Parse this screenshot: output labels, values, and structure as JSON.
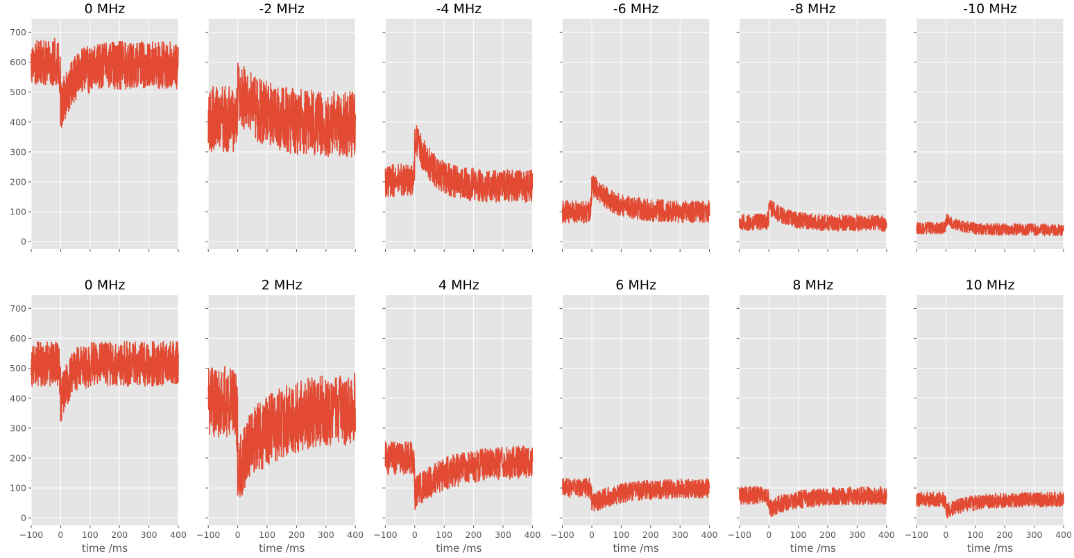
{
  "figure": {
    "background": "#ffffff",
    "plot_background": "#e5e5e5",
    "grid_color": "#ffffff",
    "series_color": "#e24a33",
    "tick_color": "#555555",
    "title_color": "#000000"
  },
  "chart_data": [
    {
      "type": "line",
      "title": "0 MHz",
      "xlabel": "",
      "ylabel": "",
      "xlim": [
        -100,
        400
      ],
      "ylim": [
        -25,
        745
      ],
      "x_ticks": [
        "−100",
        "0",
        "100",
        "200",
        "300",
        "400"
      ],
      "y_ticks": [
        "0",
        "100",
        "200",
        "300",
        "400",
        "500",
        "600",
        "700"
      ],
      "show_x_tick_labels": false,
      "show_y_tick_labels": true,
      "grid": true,
      "series": [
        {
          "pre": 600,
          "post": 590,
          "band": 160,
          "spike": -150,
          "tau": 40
        }
      ]
    },
    {
      "type": "line",
      "title": "-2 MHz",
      "xlabel": "",
      "ylabel": "",
      "xlim": [
        -100,
        400
      ],
      "ylim": [
        -25,
        745
      ],
      "x_ticks": [
        "−100",
        "0",
        "100",
        "200",
        "300",
        "400"
      ],
      "y_ticks": [
        "0",
        "100",
        "200",
        "300",
        "400",
        "500",
        "600",
        "700"
      ],
      "show_x_tick_labels": false,
      "show_y_tick_labels": false,
      "grid": true,
      "series": [
        {
          "pre": 410,
          "post": 390,
          "band": 220,
          "spike": 110,
          "tau": 90
        }
      ]
    },
    {
      "type": "line",
      "title": "-4 MHz",
      "xlabel": "",
      "ylabel": "",
      "xlim": [
        -100,
        400
      ],
      "ylim": [
        -25,
        745
      ],
      "x_ticks": [
        "−100",
        "0",
        "100",
        "200",
        "300",
        "400"
      ],
      "y_ticks": [
        "0",
        "100",
        "200",
        "300",
        "400",
        "500",
        "600",
        "700"
      ],
      "show_x_tick_labels": false,
      "show_y_tick_labels": false,
      "grid": true,
      "series": [
        {
          "pre": 205,
          "post": 185,
          "band": 110,
          "spike": 170,
          "tau": 60
        }
      ]
    },
    {
      "type": "line",
      "title": "-6 MHz",
      "xlabel": "",
      "ylabel": "",
      "xlim": [
        -100,
        400
      ],
      "ylim": [
        -25,
        745
      ],
      "x_ticks": [
        "−100",
        "0",
        "100",
        "200",
        "300",
        "400"
      ],
      "y_ticks": [
        "0",
        "100",
        "200",
        "300",
        "400",
        "500",
        "600",
        "700"
      ],
      "show_x_tick_labels": false,
      "show_y_tick_labels": false,
      "grid": true,
      "series": [
        {
          "pre": 100,
          "post": 100,
          "band": 75,
          "spike": 95,
          "tau": 70
        }
      ]
    },
    {
      "type": "line",
      "title": "-8 MHz",
      "xlabel": "",
      "ylabel": "",
      "xlim": [
        -100,
        400
      ],
      "ylim": [
        -25,
        745
      ],
      "x_ticks": [
        "−100",
        "0",
        "100",
        "200",
        "300",
        "400"
      ],
      "y_ticks": [
        "0",
        "100",
        "200",
        "300",
        "400",
        "500",
        "600",
        "700"
      ],
      "show_x_tick_labels": false,
      "show_y_tick_labels": false,
      "grid": true,
      "series": [
        {
          "pre": 65,
          "post": 62,
          "band": 55,
          "spike": 55,
          "tau": 60
        }
      ]
    },
    {
      "type": "line",
      "title": "-10 MHz",
      "xlabel": "",
      "ylabel": "",
      "xlim": [
        -100,
        400
      ],
      "ylim": [
        -25,
        745
      ],
      "x_ticks": [
        "−100",
        "0",
        "100",
        "200",
        "300",
        "400"
      ],
      "y_ticks": [
        "0",
        "100",
        "200",
        "300",
        "400",
        "500",
        "600",
        "700"
      ],
      "show_x_tick_labels": false,
      "show_y_tick_labels": false,
      "grid": true,
      "series": [
        {
          "pre": 45,
          "post": 40,
          "band": 40,
          "spike": 35,
          "tau": 50
        }
      ]
    },
    {
      "type": "line",
      "title": "0 MHz",
      "xlabel": "time /ms",
      "ylabel": "",
      "xlim": [
        -100,
        400
      ],
      "ylim": [
        -25,
        745
      ],
      "x_ticks": [
        "−100",
        "0",
        "100",
        "200",
        "300",
        "400"
      ],
      "y_ticks": [
        "0",
        "100",
        "200",
        "300",
        "400",
        "500",
        "600",
        "700"
      ],
      "show_x_tick_labels": true,
      "show_y_tick_labels": true,
      "grid": true,
      "series": [
        {
          "pre": 515,
          "post": 515,
          "band": 150,
          "spike": -130,
          "tau": 30
        }
      ]
    },
    {
      "type": "line",
      "title": "2 MHz",
      "xlabel": "time /ms",
      "ylabel": "",
      "xlim": [
        -100,
        400
      ],
      "ylim": [
        -25,
        745
      ],
      "x_ticks": [
        "−100",
        "0",
        "100",
        "200",
        "300",
        "400"
      ],
      "y_ticks": [
        "0",
        "100",
        "200",
        "300",
        "400",
        "500",
        "600",
        "700"
      ],
      "show_x_tick_labels": true,
      "show_y_tick_labels": false,
      "grid": true,
      "series": [
        {
          "pre": 390,
          "post": 370,
          "band": 240,
          "spike": -200,
          "tau": 110
        }
      ]
    },
    {
      "type": "line",
      "title": "4 MHz",
      "xlabel": "time /ms",
      "ylabel": "",
      "xlim": [
        -100,
        400
      ],
      "ylim": [
        -25,
        745
      ],
      "x_ticks": [
        "−100",
        "0",
        "100",
        "200",
        "300",
        "400"
      ],
      "y_ticks": [
        "0",
        "100",
        "200",
        "300",
        "400",
        "500",
        "600",
        "700"
      ],
      "show_x_tick_labels": true,
      "show_y_tick_labels": false,
      "grid": true,
      "series": [
        {
          "pre": 200,
          "post": 190,
          "band": 110,
          "spike": -110,
          "tau": 110
        }
      ]
    },
    {
      "type": "line",
      "title": "6 MHz",
      "xlabel": "time /ms",
      "ylabel": "",
      "xlim": [
        -100,
        400
      ],
      "ylim": [
        -25,
        745
      ],
      "x_ticks": [
        "−100",
        "0",
        "100",
        "200",
        "300",
        "400"
      ],
      "y_ticks": [
        "0",
        "100",
        "200",
        "300",
        "400",
        "500",
        "600",
        "700"
      ],
      "show_x_tick_labels": true,
      "show_y_tick_labels": false,
      "grid": true,
      "series": [
        {
          "pre": 100,
          "post": 100,
          "band": 65,
          "spike": -55,
          "tau": 90
        }
      ]
    },
    {
      "type": "line",
      "title": "8 MHz",
      "xlabel": "time /ms",
      "ylabel": "",
      "xlim": [
        -100,
        400
      ],
      "ylim": [
        -25,
        745
      ],
      "x_ticks": [
        "−100",
        "0",
        "100",
        "200",
        "300",
        "400"
      ],
      "y_ticks": [
        "0",
        "100",
        "200",
        "300",
        "400",
        "500",
        "600",
        "700"
      ],
      "show_x_tick_labels": true,
      "show_y_tick_labels": false,
      "grid": true,
      "series": [
        {
          "pre": 75,
          "post": 75,
          "band": 60,
          "spike": -45,
          "tau": 90
        }
      ]
    },
    {
      "type": "line",
      "title": "10 MHz",
      "xlabel": "time /ms",
      "ylabel": "",
      "xlim": [
        -100,
        400
      ],
      "ylim": [
        -25,
        745
      ],
      "x_ticks": [
        "−100",
        "0",
        "100",
        "200",
        "300",
        "400"
      ],
      "y_ticks": [
        "0",
        "100",
        "200",
        "300",
        "400",
        "500",
        "600",
        "700"
      ],
      "show_x_tick_labels": true,
      "show_y_tick_labels": false,
      "grid": true,
      "series": [
        {
          "pre": 62,
          "post": 62,
          "band": 50,
          "spike": -40,
          "tau": 80
        }
      ]
    }
  ]
}
